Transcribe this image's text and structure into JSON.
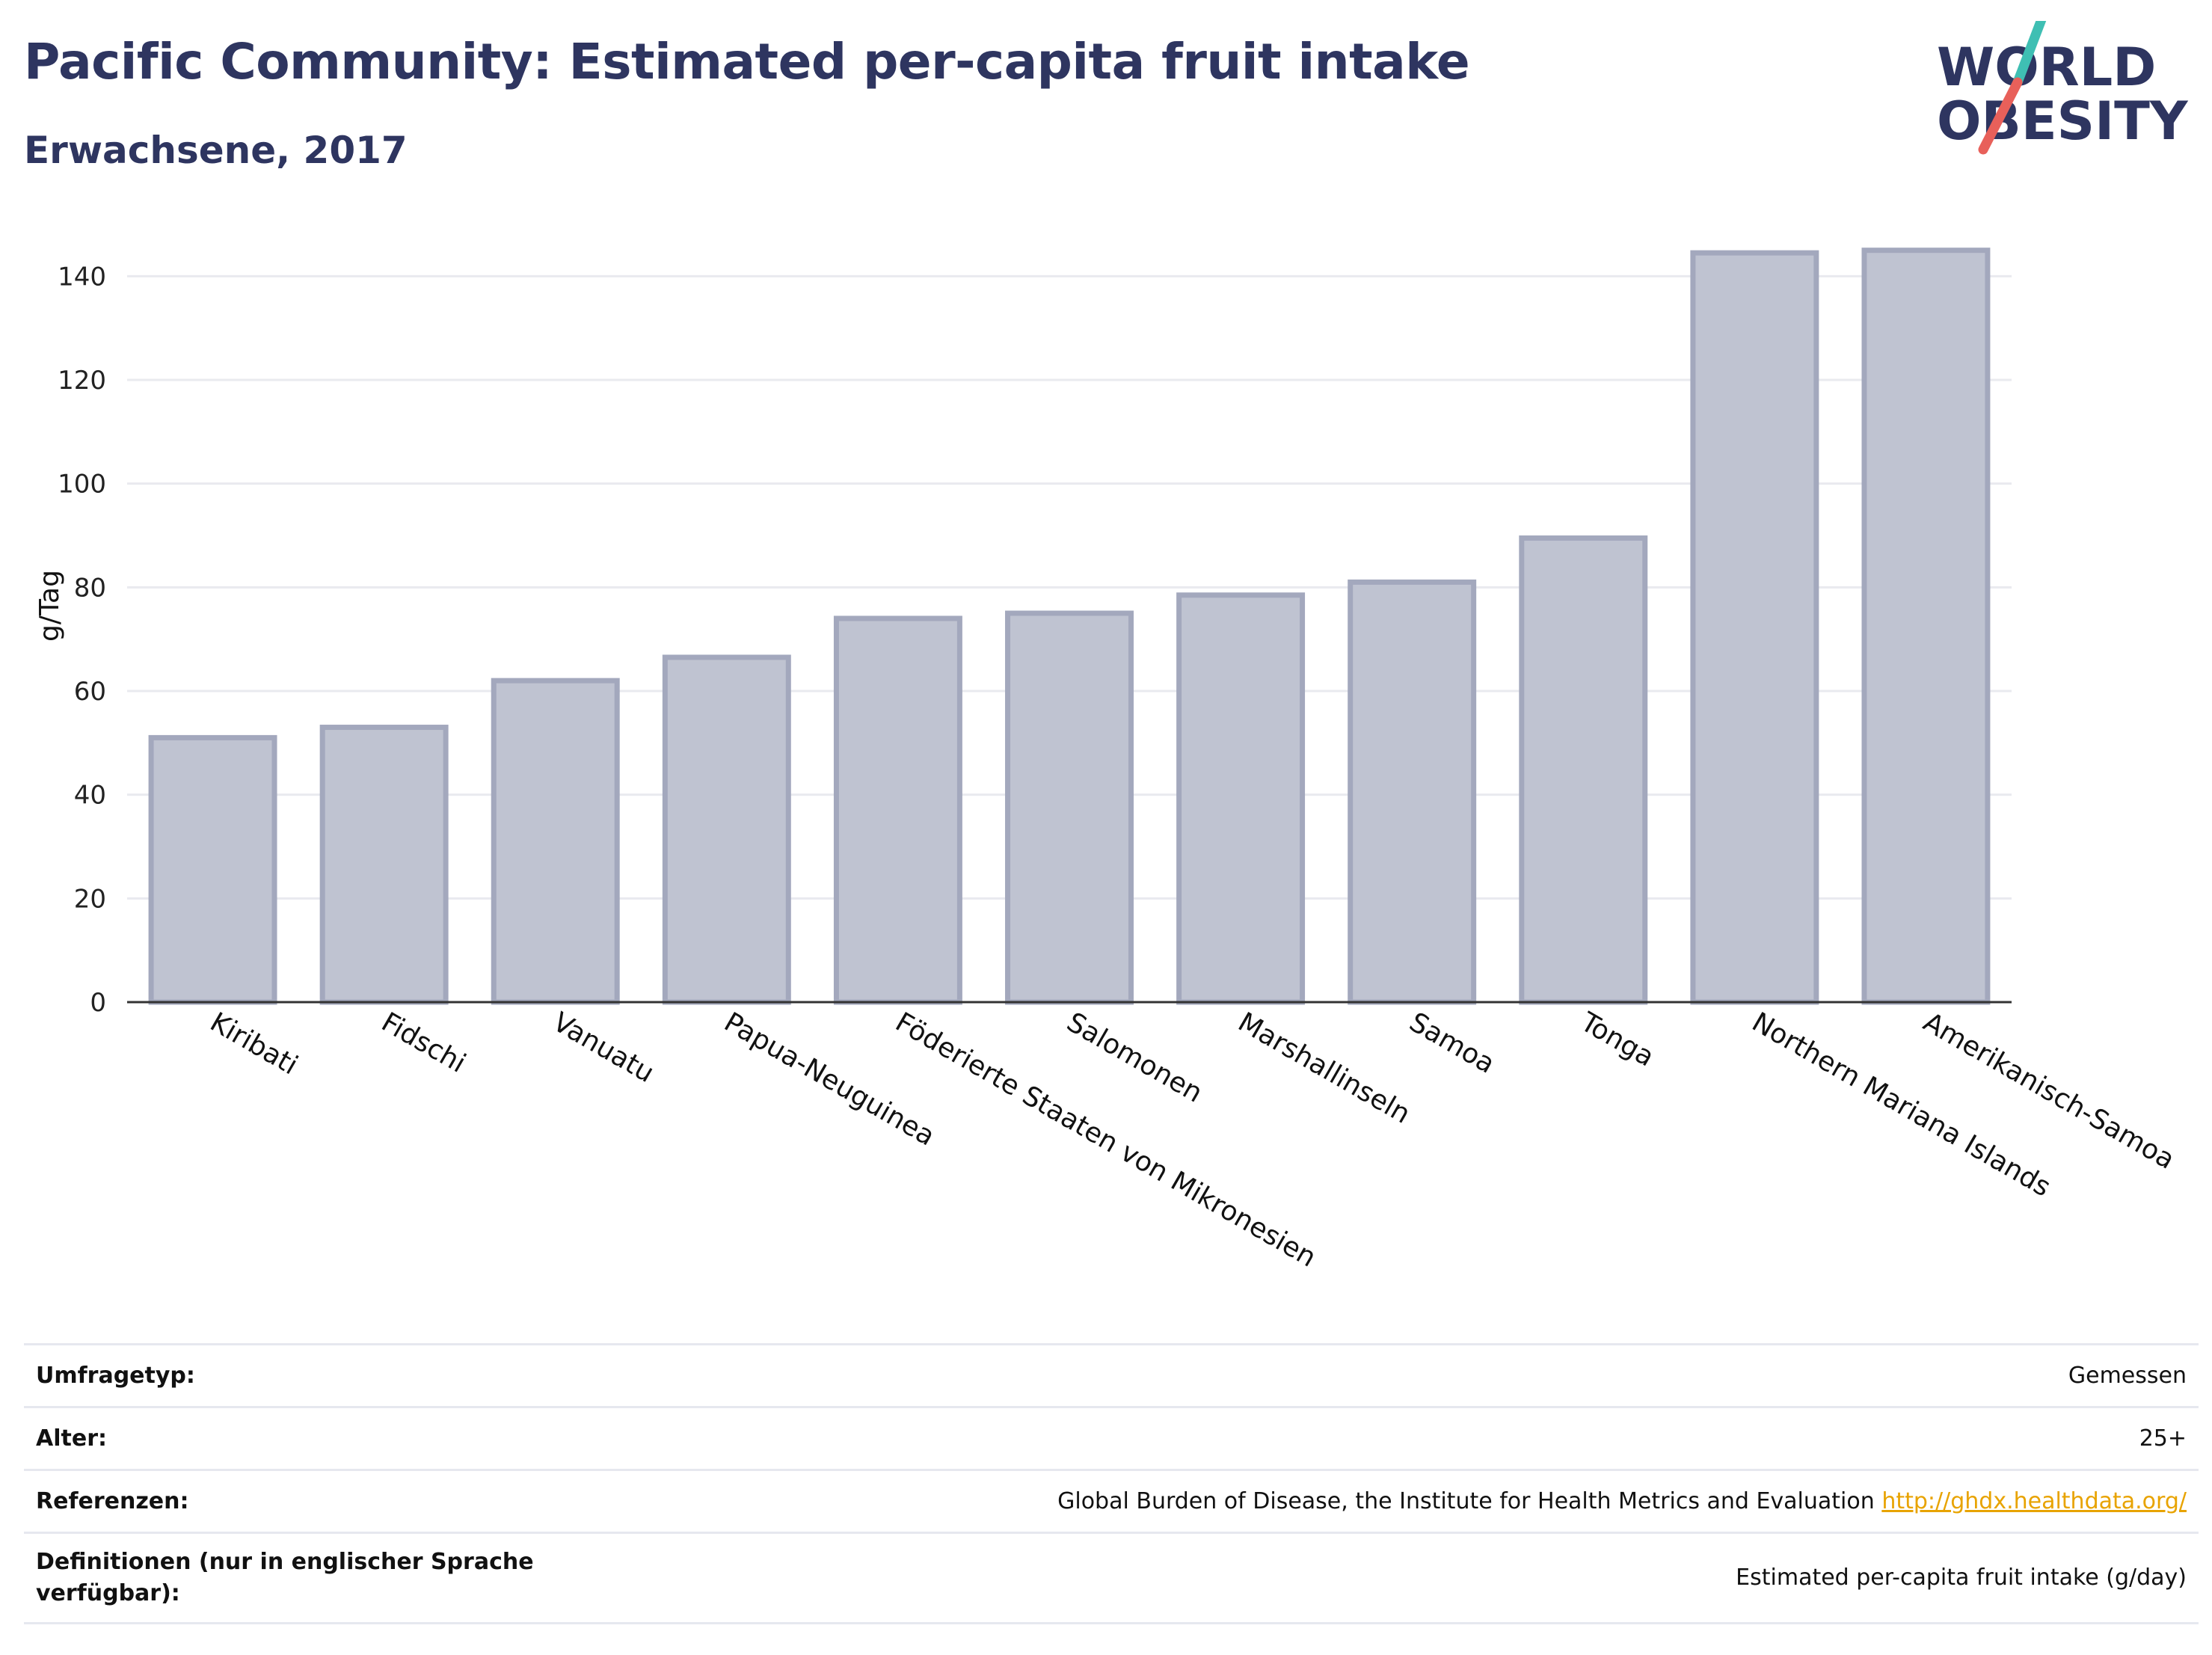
{
  "header": {
    "title": "Pacific Community: Estimated per-capita fruit intake",
    "subtitle": "Erwachsene, 2017"
  },
  "logo": {
    "line1": "WORLD",
    "line2": "OBESITY",
    "colors": {
      "text": "#2e3560",
      "slash_top": "#3fbfb3",
      "slash_bottom": "#e8605a"
    }
  },
  "chart_data": {
    "type": "bar",
    "ylabel": "g/Tag",
    "ylim": [
      0,
      150
    ],
    "yticks": [
      0,
      20,
      40,
      60,
      80,
      100,
      120,
      140
    ],
    "grid": true,
    "categories": [
      "Kiribati",
      "Fidschi",
      "Vanuatu",
      "Papua-Neuguinea",
      "Föderierte Staaten von Mikronesien",
      "Salomonen",
      "Marshallinseln",
      "Samoa",
      "Tonga",
      "Northern Mariana Islands",
      "Amerikanisch-Samoa"
    ],
    "values": [
      51,
      53,
      62,
      66.5,
      74,
      75,
      78.5,
      81,
      89.5,
      144.5,
      145
    ],
    "bar_fill": "#bfc3d1",
    "bar_stroke": "#a3a8bd"
  },
  "meta": {
    "rows": [
      {
        "key": "Umfragetyp:",
        "value": "Gemessen"
      },
      {
        "key": "Alter:",
        "value": "25+"
      },
      {
        "key": "Referenzen:",
        "value": "Global Burden of Disease, the Institute for Health Metrics and Evaluation",
        "link": "http://ghdx.healthdata.org/"
      },
      {
        "key": "Definitionen (nur in englischer Sprache verfügbar):",
        "value": "Estimated per-capita fruit intake (g/day)"
      }
    ]
  }
}
